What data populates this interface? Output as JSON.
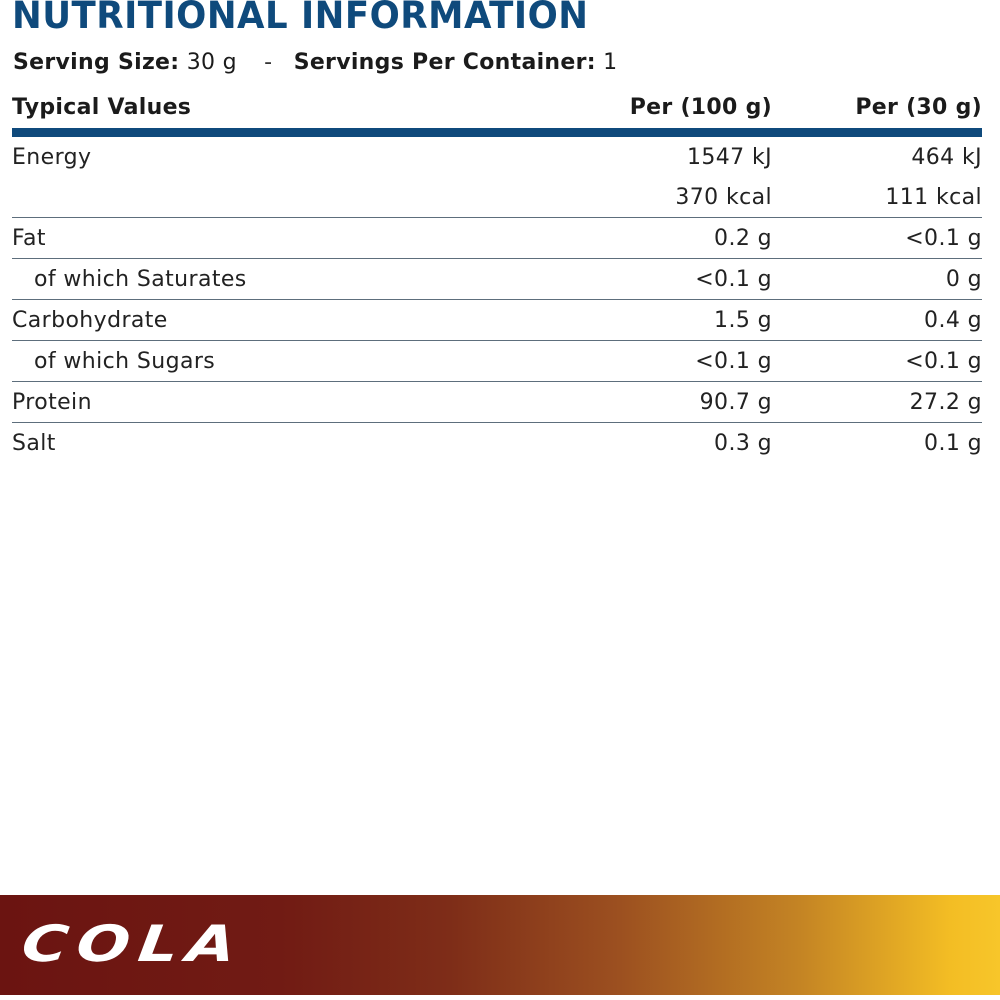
{
  "title": "NUTRITIONAL INFORMATION",
  "serving": {
    "size_label": "Serving Size:",
    "size_value": "30 g",
    "separator": "-",
    "per_container_label": "Servings Per Container:",
    "per_container_value": "1"
  },
  "table": {
    "headers": [
      "Typical Values",
      "Per (100 g)",
      "Per (30 g)"
    ],
    "rows": [
      {
        "label": "Energy",
        "per100": "1547 kJ",
        "perServing": "464 kJ",
        "sub": false
      },
      {
        "label": "",
        "per100": "370 kcal",
        "perServing": "111 kcal",
        "sub": false
      },
      {
        "label": "Fat",
        "per100": "0.2 g",
        "perServing": "<0.1 g",
        "sub": false
      },
      {
        "label": "of which Saturates",
        "per100": "<0.1 g",
        "perServing": "0 g",
        "sub": true
      },
      {
        "label": "Carbohydrate",
        "per100": "1.5 g",
        "perServing": "0.4 g",
        "sub": false
      },
      {
        "label": "of which Sugars",
        "per100": "<0.1 g",
        "perServing": "<0.1 g",
        "sub": true
      },
      {
        "label": "Protein",
        "per100": "90.7 g",
        "perServing": "27.2 g",
        "sub": false
      },
      {
        "label": "Salt",
        "per100": "0.3 g",
        "perServing": "0.1 g",
        "sub": false
      }
    ]
  },
  "banner": {
    "flavor": "COLA",
    "gradient_start": "#6b1411",
    "gradient_end": "#f7c62a"
  },
  "colors": {
    "accent": "#0f4a7c"
  }
}
